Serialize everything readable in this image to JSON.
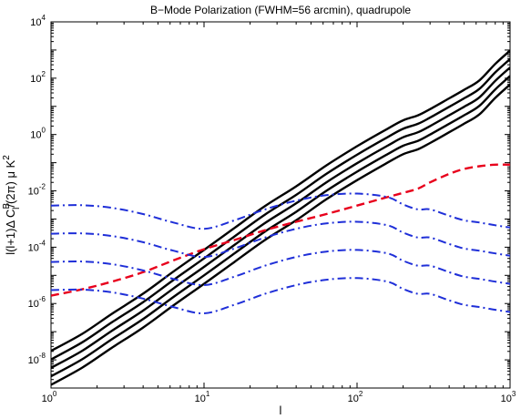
{
  "chart_data": {
    "type": "line",
    "title": "B−Mode Polarization (FWHM=56 arcmin), quadrupole",
    "xlabel": "l",
    "ylabel": "l(l+1)Δ C_l^B/(2π) μ K^2",
    "x_scale": "log",
    "y_scale": "log",
    "xlim": [
      1,
      1000
    ],
    "ylim": [
      1e-09,
      10000
    ],
    "x_ticks": [
      {
        "base": "10",
        "exp": "0"
      },
      {
        "base": "10",
        "exp": "1"
      },
      {
        "base": "10",
        "exp": "2"
      },
      {
        "base": "10",
        "exp": "3"
      }
    ],
    "y_ticks": [
      {
        "base": "10",
        "exp": "-8"
      },
      {
        "base": "10",
        "exp": "-6"
      },
      {
        "base": "10",
        "exp": "-4"
      },
      {
        "base": "10",
        "exp": "-2"
      },
      {
        "base": "10",
        "exp": "0"
      },
      {
        "base": "10",
        "exp": "2"
      },
      {
        "base": "10",
        "exp": "4"
      }
    ],
    "x": [
      1,
      1.6,
      2.5,
      4,
      6.3,
      10,
      15.8,
      25,
      40,
      63,
      100,
      158,
      200,
      250,
      300,
      400,
      500,
      630,
      800,
      1000
    ],
    "series": [
      {
        "style": "solid",
        "color": "#000000",
        "values": [
          1.3e-09,
          5.3e-09,
          2.7e-08,
          1.4e-07,
          8.5e-07,
          5e-06,
          3e-05,
          0.00018,
          0.0009,
          0.005,
          0.024,
          0.1,
          0.2,
          0.3,
          0.5,
          1.2,
          2.4,
          5.2,
          20,
          60
        ]
      },
      {
        "style": "solid",
        "color": "#000000",
        "values": [
          2.6e-09,
          1.05e-08,
          5.4e-08,
          2.8e-07,
          1.7e-06,
          1e-05,
          6e-05,
          0.00036,
          0.0018,
          0.01,
          0.048,
          0.2,
          0.4,
          0.6,
          1,
          2.4,
          4.8,
          10.4,
          40,
          120
        ]
      },
      {
        "style": "solid",
        "color": "#000000",
        "values": [
          5.2e-09,
          2.1e-08,
          1.08e-07,
          5.6e-07,
          3.4e-06,
          2e-05,
          0.00012,
          0.00072,
          0.0036,
          0.02,
          0.096,
          0.4,
          0.8,
          1.2,
          2,
          4.8,
          9.6,
          20.8,
          80,
          240
        ]
      },
      {
        "style": "solid",
        "color": "#000000",
        "values": [
          1.04e-08,
          4.2e-08,
          2.16e-07,
          1.12e-06,
          6.8e-06,
          4e-05,
          0.00024,
          0.00144,
          0.0072,
          0.04,
          0.192,
          0.8,
          1.6,
          2.4,
          4,
          9.6,
          19.2,
          41.6,
          160,
          480
        ]
      },
      {
        "style": "solid",
        "color": "#000000",
        "values": [
          2.08e-08,
          8.4e-08,
          4.32e-07,
          2.24e-06,
          1.36e-05,
          8e-05,
          0.00048,
          0.00288,
          0.0144,
          0.08,
          0.384,
          1.6,
          3.2,
          4.8,
          8,
          19.2,
          38.4,
          83.2,
          320,
          960
        ]
      },
      {
        "style": "dashed",
        "color": "#e8001c",
        "values": [
          1.9e-06,
          3.2e-06,
          6e-06,
          1.3e-05,
          3.4e-05,
          8.5e-05,
          0.00018,
          0.0004,
          0.0008,
          0.0015,
          0.003,
          0.006,
          0.0085,
          0.012,
          0.02,
          0.04,
          0.06,
          0.075,
          0.085,
          0.085
        ]
      },
      {
        "style": "dashdot",
        "color": "#1f2fd8",
        "values": [
          3e-06,
          3.1e-06,
          2.5e-06,
          1.5e-06,
          7.5e-07,
          4.5e-07,
          9e-07,
          2.2e-06,
          4.5e-06,
          7e-06,
          8e-06,
          6e-06,
          3.3e-06,
          2.2e-06,
          2.2e-06,
          1.3e-06,
          9e-07,
          7.5e-07,
          6e-07,
          5e-07
        ]
      },
      {
        "style": "dashdot",
        "color": "#1f2fd8",
        "values": [
          3e-05,
          3.1e-05,
          2.5e-05,
          1.5e-05,
          7.5e-06,
          4.5e-06,
          9e-06,
          2.2e-05,
          4.5e-05,
          7e-05,
          8e-05,
          6e-05,
          3.3e-05,
          2.2e-05,
          2.2e-05,
          1.3e-05,
          9e-06,
          7.5e-06,
          6e-06,
          5e-06
        ]
      },
      {
        "style": "dashdot",
        "color": "#1f2fd8",
        "values": [
          0.0003,
          0.00031,
          0.00025,
          0.00015,
          7.5e-05,
          4.5e-05,
          9e-05,
          0.00022,
          0.00045,
          0.0007,
          0.0008,
          0.0006,
          0.00033,
          0.00022,
          0.00022,
          0.00013,
          9e-05,
          7.5e-05,
          6e-05,
          5e-05
        ]
      },
      {
        "style": "dashdot",
        "color": "#1f2fd8",
        "values": [
          0.003,
          0.0031,
          0.0025,
          0.0015,
          0.00075,
          0.00045,
          0.0009,
          0.0022,
          0.0045,
          0.007,
          0.008,
          0.006,
          0.0033,
          0.0022,
          0.0022,
          0.0013,
          0.0009,
          0.00075,
          0.0006,
          0.0005
        ]
      }
    ],
    "grid": false,
    "legend": "none"
  }
}
